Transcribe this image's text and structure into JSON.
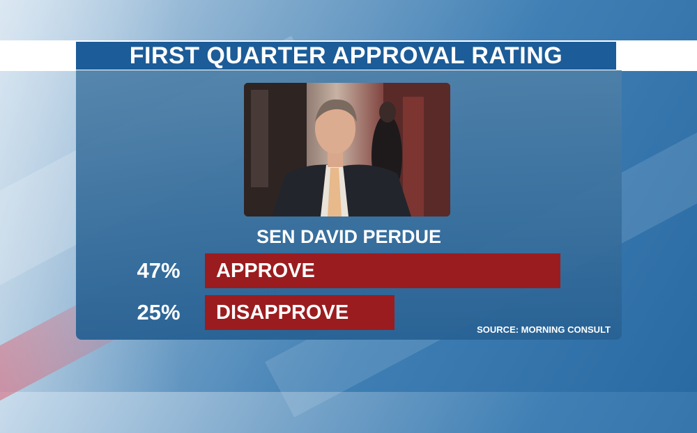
{
  "title": "FIRST QUARTER APPROVAL RATING",
  "subject": "SEN DAVID PERDUE",
  "source": "SOURCE: MORNING CONSULT",
  "chart_data": {
    "type": "bar",
    "title": "FIRST QUARTER APPROVAL RATING",
    "orientation": "horizontal",
    "categories": [
      "APPROVE",
      "DISAPPROVE"
    ],
    "values": [
      47,
      25
    ],
    "value_labels": [
      "47%",
      "25%"
    ],
    "unit": "%",
    "xlim": [
      0,
      100
    ],
    "bar_color": "#9b1c1f"
  },
  "colors": {
    "title_bg": "#1c5c98",
    "bar": "#9b1c1f",
    "text": "#ffffff"
  }
}
